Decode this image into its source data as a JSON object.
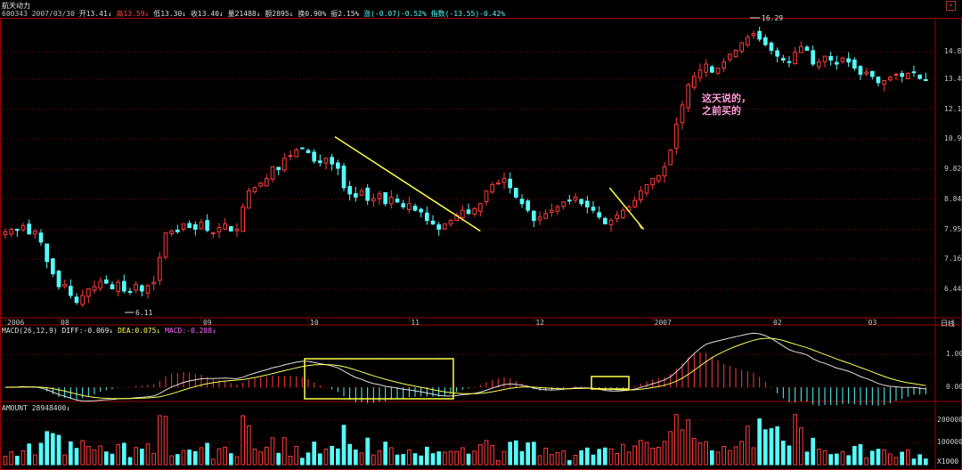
{
  "header": {
    "name": "航天动力",
    "code": "600343",
    "date": "2007/03/30",
    "open": "开13.41↓",
    "high": "高13.59↓",
    "low": "低13.30↓",
    "close": "收13.40↓",
    "volume": "量21488↓",
    "amount": "额2895↓",
    "turnover": "换0.90%",
    "amplitude": "振2.15%",
    "change": "涨(-0.07)-0.52%",
    "index": "指数(-13.55)-0.42%"
  },
  "chart_data": [
    {
      "type": "candlestick",
      "name": "price",
      "y_ticks": [
        6.44,
        7.16,
        7.95,
        8.84,
        9.82,
        10.91,
        12.12,
        13.47,
        14.82
      ],
      "ylim": [
        5.9,
        16.6
      ],
      "x_ticks": [
        "2006",
        "08",
        "09",
        "10",
        "11",
        "12",
        "2007",
        "02",
        "03"
      ],
      "annotations": {
        "max_label": "16.29",
        "min_label": "6.11",
        "note_line1": "这天说的，",
        "note_line2": "之前买的"
      },
      "closes": [
        7.88,
        7.95,
        7.92,
        8.05,
        7.82,
        7.9,
        7.6,
        7.1,
        6.8,
        6.5,
        6.55,
        6.3,
        6.15,
        6.3,
        6.45,
        6.5,
        6.62,
        6.58,
        6.45,
        6.6,
        6.4,
        6.38,
        6.55,
        6.4,
        6.52,
        6.6,
        7.2,
        7.85,
        7.9,
        7.88,
        8.1,
        8.0,
        7.95,
        8.15,
        7.92,
        7.85,
        8.0,
        8.1,
        7.9,
        7.95,
        8.6,
        9.1,
        9.2,
        9.35,
        9.5,
        9.9,
        9.8,
        10.2,
        10.3,
        10.5,
        10.55,
        10.4,
        10.1,
        10.05,
        10.2,
        10.0,
        9.85,
        9.2,
        9.0,
        8.9,
        9.1,
        8.8,
        8.85,
        9.0,
        8.7,
        8.9,
        8.75,
        8.6,
        8.7,
        8.5,
        8.45,
        8.2,
        8.1,
        7.95,
        8.1,
        8.2,
        8.35,
        8.5,
        8.4,
        8.55,
        8.7,
        9.1,
        9.3,
        9.35,
        9.5,
        9.2,
        8.9,
        8.7,
        8.5,
        8.2,
        8.3,
        8.4,
        8.5,
        8.6,
        8.75,
        8.8,
        8.9,
        8.7,
        8.6,
        8.5,
        8.3,
        8.1,
        8.2,
        8.35,
        8.5,
        8.6,
        8.8,
        9.1,
        9.3,
        9.5,
        9.6,
        9.9,
        10.5,
        11.5,
        12.3,
        13.2,
        13.6,
        13.9,
        14.2,
        13.8,
        14.0,
        14.3,
        14.7,
        14.9,
        15.3,
        15.6,
        15.8,
        15.5,
        15.2,
        14.9,
        14.6,
        14.4,
        14.3,
        14.8,
        15.1,
        14.9,
        14.2,
        14.3,
        14.6,
        14.4,
        14.2,
        14.5,
        14.3,
        14.0,
        13.7,
        13.8,
        13.6,
        13.3,
        13.4,
        13.55,
        13.7,
        13.6,
        13.75,
        13.8,
        13.5,
        13.4
      ],
      "trend_lines": [
        {
          "from": [
            "10",
            11.0
          ],
          "to": [
            "11",
            7.9
          ]
        },
        {
          "from": [
            "12",
            9.2
          ],
          "to": [
            "2007",
            7.95
          ]
        }
      ]
    },
    {
      "type": "line",
      "name": "macd",
      "title": "MACD(26,12,9)",
      "diff_label": "DIFF:-0.069↓",
      "dea_label": "DEA:0.075↓",
      "macd_label": "MACD:-0.288↓",
      "period_label": "日线",
      "y_ticks": [
        1.0,
        0.0
      ],
      "ylim": [
        -0.35,
        1.55
      ]
    },
    {
      "type": "bar",
      "name": "amount",
      "title": "AMOUNT 28948400↓",
      "y_ticks": [
        "200000",
        "100000"
      ],
      "unit_label": "X1000"
    }
  ],
  "colors": {
    "up": "#ff3b3b",
    "down": "#54fcfc",
    "diff": "#e0e0e0",
    "dea": "#ffff55",
    "macd_hist": "#ff66ff",
    "box": "#ffff44",
    "grid": "#8a0000"
  }
}
